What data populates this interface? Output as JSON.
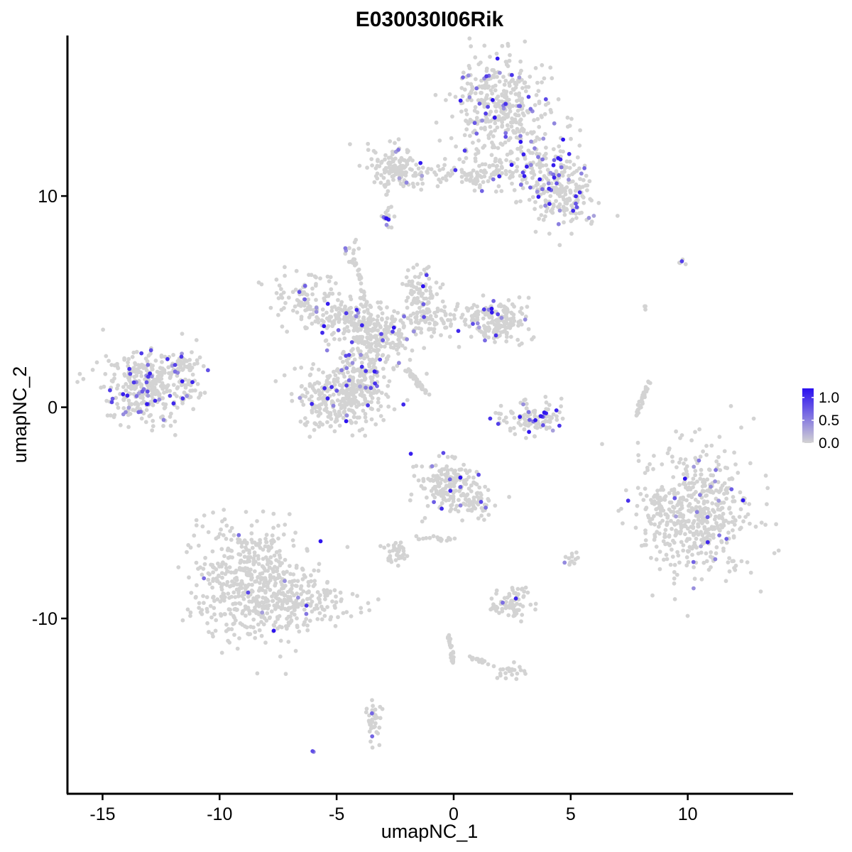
{
  "chart_data": {
    "type": "scatter",
    "title": "E030030I06Rik",
    "xlabel": "umapNC_1",
    "ylabel": "umapNC_2",
    "xlim": [
      -16.5,
      14.5
    ],
    "ylim": [
      -18.3,
      17.6
    ],
    "xticks": [
      -15,
      -10,
      -5,
      0,
      5,
      10
    ],
    "xtick_labels": [
      "-15",
      "-10",
      "-5",
      "0",
      "5",
      "10"
    ],
    "yticks": [
      -10,
      0,
      10
    ],
    "ytick_labels": [
      "-10",
      "0",
      "10"
    ],
    "grid": false,
    "legend_position": "right",
    "color_scale": {
      "low_color": "#d3d3d3",
      "high_color": "#2a0ff0",
      "min": 0.0,
      "max": 1.2,
      "ticks": [
        1.0,
        0.5,
        0.0
      ],
      "tick_labels": [
        "1.0",
        "0.5",
        "0.0"
      ]
    },
    "clusters": [
      {
        "cx": 1.9,
        "cy": 14.2,
        "sx": 1.0,
        "sy": 1.2,
        "n": 380,
        "expr_frac": 0.12
      },
      {
        "cx": 3.6,
        "cy": 11.3,
        "sx": 0.9,
        "sy": 0.9,
        "n": 160,
        "expr_frac": 0.16
      },
      {
        "cx": 4.8,
        "cy": 10.0,
        "sx": 0.8,
        "sy": 0.7,
        "n": 150,
        "expr_frac": 0.06
      },
      {
        "cx": -2.4,
        "cy": 11.4,
        "sx": 0.6,
        "sy": 0.5,
        "n": 130,
        "expr_frac": 0.03
      },
      {
        "cx": -0.6,
        "cy": 11.0,
        "sx": 1.0,
        "sy": 0.25,
        "n": 40,
        "expr_frac": 0.05
      },
      {
        "cx": 1.3,
        "cy": 11.1,
        "sx": 0.5,
        "sy": 0.4,
        "n": 60,
        "expr_frac": 0.05
      },
      {
        "cx": -2.9,
        "cy": 8.7,
        "sx": 0.15,
        "sy": 0.3,
        "n": 14,
        "expr_frac": 0.3
      },
      {
        "cx": -13.0,
        "cy": 1.0,
        "sx": 1.0,
        "sy": 0.75,
        "n": 360,
        "expr_frac": 0.12
      },
      {
        "cx": -11.7,
        "cy": 2.1,
        "sx": 0.35,
        "sy": 0.3,
        "n": 40,
        "expr_frac": 0.05
      },
      {
        "cx": -5.1,
        "cy": 0.5,
        "sx": 0.9,
        "sy": 0.8,
        "n": 260,
        "expr_frac": 0.05
      },
      {
        "cx": -3.7,
        "cy": 1.7,
        "sx": 0.6,
        "sy": 1.0,
        "n": 200,
        "expr_frac": 0.06
      },
      {
        "cx": -3.2,
        "cy": 3.4,
        "sx": 0.8,
        "sy": 0.6,
        "n": 180,
        "expr_frac": 0.06
      },
      {
        "cx": -6.4,
        "cy": 5.1,
        "sx": 0.8,
        "sy": 0.6,
        "n": 90,
        "expr_frac": 0.1
      },
      {
        "cx": -4.6,
        "cy": 4.3,
        "sx": 0.8,
        "sy": 0.5,
        "n": 110,
        "expr_frac": 0.05
      },
      {
        "cx": -1.4,
        "cy": 5.4,
        "sx": 0.35,
        "sy": 0.7,
        "n": 80,
        "expr_frac": 0.1
      },
      {
        "cx": -0.5,
        "cy": 4.2,
        "sx": 0.8,
        "sy": 0.4,
        "n": 90,
        "expr_frac": 0.06
      },
      {
        "cx": 1.8,
        "cy": 4.1,
        "sx": 0.7,
        "sy": 0.5,
        "n": 160,
        "expr_frac": 0.05
      },
      {
        "cx": -4.3,
        "cy": 7.2,
        "sx": 0.2,
        "sy": 0.3,
        "n": 16,
        "expr_frac": 0.1
      },
      {
        "cx": 3.2,
        "cy": -0.5,
        "sx": 0.7,
        "sy": 0.45,
        "n": 110,
        "expr_frac": 0.15
      },
      {
        "cx": 10.4,
        "cy": -4.9,
        "sx": 1.2,
        "sy": 1.5,
        "n": 520,
        "expr_frac": 0.04
      },
      {
        "cx": 8.7,
        "cy": -4.6,
        "sx": 0.25,
        "sy": 0.4,
        "n": 22,
        "expr_frac": 0.1
      },
      {
        "cx": -8.5,
        "cy": -8.3,
        "sx": 1.2,
        "sy": 1.4,
        "n": 560,
        "expr_frac": 0.01
      },
      {
        "cx": -6.2,
        "cy": -9.4,
        "sx": 1.0,
        "sy": 0.5,
        "n": 120,
        "expr_frac": 0.01
      },
      {
        "cx": -0.2,
        "cy": -3.7,
        "sx": 0.6,
        "sy": 0.6,
        "n": 170,
        "expr_frac": 0.03
      },
      {
        "cx": 0.8,
        "cy": -4.6,
        "sx": 0.5,
        "sy": 0.4,
        "n": 50,
        "expr_frac": 0.02
      },
      {
        "cx": -2.5,
        "cy": -6.9,
        "sx": 0.3,
        "sy": 0.25,
        "n": 40,
        "expr_frac": 0.0
      },
      {
        "cx": 2.4,
        "cy": -9.3,
        "sx": 0.45,
        "sy": 0.4,
        "n": 70,
        "expr_frac": 0.05
      },
      {
        "cx": 5.0,
        "cy": -7.2,
        "sx": 0.12,
        "sy": 0.15,
        "n": 12,
        "expr_frac": 0.1
      },
      {
        "cx": 2.4,
        "cy": -12.5,
        "sx": 0.3,
        "sy": 0.2,
        "n": 22,
        "expr_frac": 0.0
      },
      {
        "cx": -3.4,
        "cy": -14.8,
        "sx": 0.2,
        "sy": 0.6,
        "n": 35,
        "expr_frac": 0.05
      },
      {
        "cx": 8.3,
        "cy": 4.7,
        "sx": 0.1,
        "sy": 0.1,
        "n": 3,
        "expr_frac": 0.0
      },
      {
        "cx": 9.8,
        "cy": 6.8,
        "sx": 0.2,
        "sy": 0.1,
        "n": 5,
        "expr_frac": 0.3
      },
      {
        "cx": -6.0,
        "cy": -16.3,
        "sx": 0.05,
        "sy": 0.05,
        "n": 2,
        "expr_frac": 0.5
      }
    ],
    "strands": [
      {
        "x1": -2.0,
        "y1": 1.8,
        "x2": -1.1,
        "y2": 0.6,
        "n": 40
      },
      {
        "x1": -4.2,
        "y1": 7.2,
        "x2": -3.7,
        "y2": 4.4,
        "n": 25
      },
      {
        "x1": 8.3,
        "y1": 1.2,
        "x2": 7.8,
        "y2": -0.4,
        "n": 30
      },
      {
        "x1": 0.2,
        "y1": -6.2,
        "x2": -1.6,
        "y2": -6.2,
        "n": 18
      },
      {
        "x1": -0.2,
        "y1": -10.8,
        "x2": 0.0,
        "y2": -12.2,
        "n": 25
      },
      {
        "x1": 0.6,
        "y1": -11.8,
        "x2": 2.1,
        "y2": -12.4,
        "n": 18
      },
      {
        "x1": -2.8,
        "y1": 8.9,
        "x2": -2.9,
        "y2": 10.6,
        "n": 8
      }
    ]
  }
}
